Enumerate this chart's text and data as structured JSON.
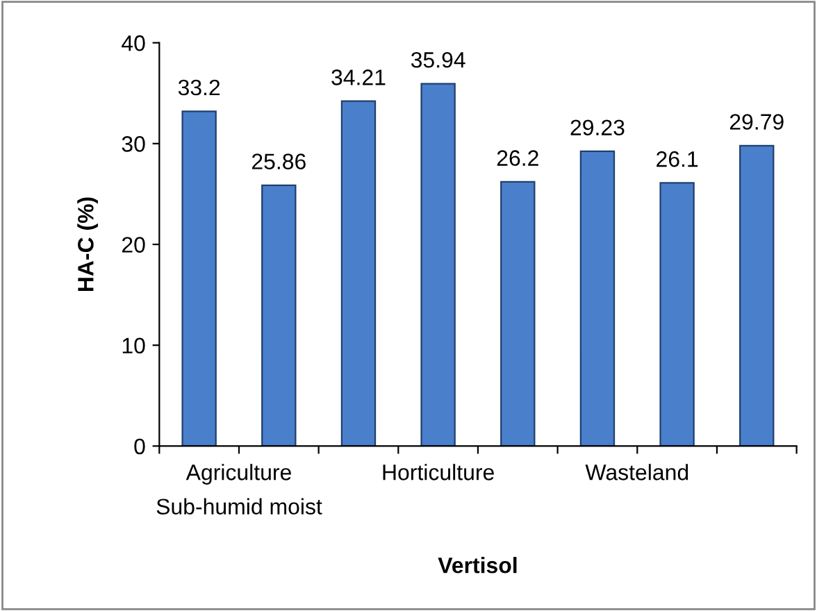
{
  "chart_data": {
    "type": "bar",
    "xlabel": "Vertisol",
    "ylabel": "HA-C (%)",
    "categories": [
      null,
      null,
      null,
      null,
      null,
      null,
      null,
      null
    ],
    "values": [
      33.2,
      25.86,
      34.21,
      35.94,
      26.2,
      29.23,
      26.1,
      29.79
    ],
    "color": "#4a7fcb",
    "data_labels": true,
    "ylim": [
      0,
      40
    ],
    "yticks": [
      0,
      10,
      20,
      30,
      40
    ],
    "grid": false,
    "legend": false,
    "annotations": [
      "Agriculture",
      "Horticulture",
      "Wasteland",
      "Sub-humid moist"
    ]
  }
}
